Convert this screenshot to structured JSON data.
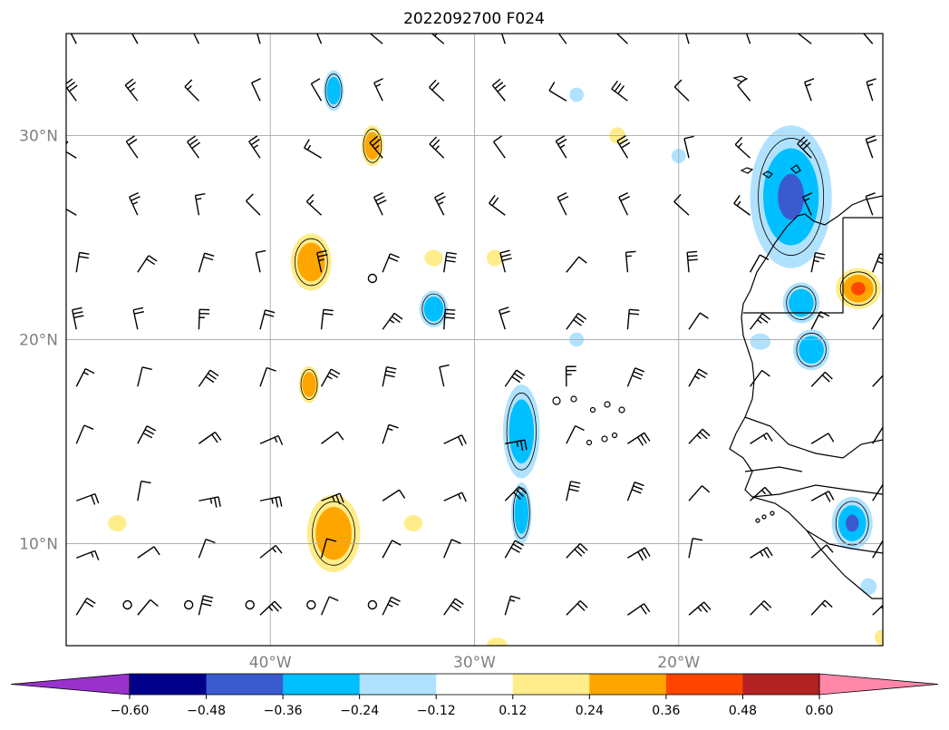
{
  "title": "2022092700 F024",
  "map": {
    "lon_range": [
      -50,
      -10
    ],
    "lat_range": [
      5,
      35
    ],
    "gridlines": true,
    "lon_ticks": [
      {
        "value": -40,
        "label": "40°W"
      },
      {
        "value": -30,
        "label": "30°W"
      },
      {
        "value": -20,
        "label": "20°W"
      }
    ],
    "lat_ticks": [
      {
        "value": 30,
        "label": "30°N"
      },
      {
        "value": 20,
        "label": "20°N"
      },
      {
        "value": 10,
        "label": "10°N"
      }
    ]
  },
  "colorbar": {
    "extend": "both",
    "under_color": "#9932cc",
    "over_color": "#ff88aa",
    "bins": [
      {
        "color": "#00008b"
      },
      {
        "color": "#3a5bd0"
      },
      {
        "color": "#00bfff"
      },
      {
        "color": "#b0e2ff"
      },
      {
        "color": "#ffffff"
      },
      {
        "color": "#ffec8b"
      },
      {
        "color": "#ffa500"
      },
      {
        "color": "#ff4500"
      },
      {
        "color": "#b22222"
      }
    ],
    "tick_labels": [
      "−0.60",
      "−0.48",
      "−0.36",
      "−0.24",
      "−0.12",
      "0.12",
      "0.24",
      "0.36",
      "0.48",
      "0.60"
    ]
  },
  "colors": {
    "neg_light": "#b0e2ff",
    "neg_mid": "#00bfff",
    "neg_strong": "#3a5bd0",
    "pos_light": "#ffec8b",
    "pos_mid": "#ffa500",
    "pos_strong": "#ff4500"
  },
  "anomalies": [
    {
      "lon": -36.9,
      "lat": 32.2,
      "rx": 0.5,
      "ry": 1.0,
      "level": 2
    },
    {
      "lon": -35.0,
      "lat": 29.5,
      "rx": 0.55,
      "ry": 1.0,
      "level": -2
    },
    {
      "lon": -23.0,
      "lat": 30.0,
      "rx": 0.4,
      "ry": 0.4,
      "level": -1
    },
    {
      "lon": -25.0,
      "lat": 32.0,
      "rx": 0.35,
      "ry": 0.35,
      "level": 1
    },
    {
      "lon": -20.0,
      "lat": 29.0,
      "rx": 0.35,
      "ry": 0.35,
      "level": 1
    },
    {
      "lon": -38.0,
      "lat": 23.8,
      "rx": 1.0,
      "ry": 1.4,
      "level": -2
    },
    {
      "lon": -32.0,
      "lat": 24.0,
      "rx": 0.45,
      "ry": 0.4,
      "level": -1
    },
    {
      "lon": -29.0,
      "lat": 24.0,
      "rx": 0.4,
      "ry": 0.4,
      "level": -1
    },
    {
      "lon": -32.0,
      "lat": 21.5,
      "rx": 0.7,
      "ry": 0.9,
      "level": 2
    },
    {
      "lon": -25.0,
      "lat": 20.0,
      "rx": 0.35,
      "ry": 0.35,
      "level": 1
    },
    {
      "lon": -38.1,
      "lat": 17.8,
      "rx": 0.5,
      "ry": 0.9,
      "level": -2
    },
    {
      "lon": -47.5,
      "lat": 11.0,
      "rx": 0.45,
      "ry": 0.4,
      "level": -1
    },
    {
      "lon": -33.0,
      "lat": 11.0,
      "rx": 0.45,
      "ry": 0.4,
      "level": -1
    },
    {
      "lon": -36.9,
      "lat": 10.5,
      "rx": 1.3,
      "ry": 1.9,
      "level": -2
    },
    {
      "lon": -27.7,
      "lat": 15.5,
      "rx": 0.9,
      "ry": 2.3,
      "level": 2
    },
    {
      "lon": -27.7,
      "lat": 11.5,
      "rx": 0.5,
      "ry": 1.5,
      "level": 2
    },
    {
      "lon": -14.5,
      "lat": 27.0,
      "rx": 2.0,
      "ry": 3.5,
      "level": 3
    },
    {
      "lon": -14.0,
      "lat": 21.8,
      "rx": 0.9,
      "ry": 1.0,
      "level": 2
    },
    {
      "lon": -13.5,
      "lat": 19.5,
      "rx": 0.9,
      "ry": 1.0,
      "level": 2
    },
    {
      "lon": -16.0,
      "lat": 19.9,
      "rx": 0.5,
      "ry": 0.4,
      "level": 1
    },
    {
      "lon": -11.2,
      "lat": 22.5,
      "rx": 1.1,
      "ry": 1.0,
      "level": -3
    },
    {
      "lon": -11.5,
      "lat": 11.0,
      "rx": 1.0,
      "ry": 1.3,
      "level": 3
    },
    {
      "lon": -10.7,
      "lat": 7.9,
      "rx": 0.4,
      "ry": 0.4,
      "level": 1
    },
    {
      "lon": -28.9,
      "lat": 5.0,
      "rx": 0.5,
      "ry": 0.4,
      "level": -1
    },
    {
      "lon": -10.0,
      "lat": 5.4,
      "rx": 0.4,
      "ry": 0.4,
      "level": -1
    }
  ],
  "wind_barbs": {
    "lons": [
      -49.5,
      -46.5,
      -43.5,
      -40.5,
      -37.5,
      -34.5,
      -31.5,
      -28.5,
      -25.5,
      -22.5,
      -19.5,
      -16.5,
      -13.5,
      -10.5
    ],
    "lats": [
      34.5,
      31.7,
      28.9,
      26.1,
      23.3,
      20.5,
      17.7,
      14.9,
      12.1,
      9.3,
      6.5
    ],
    "calm_points": [
      {
        "lon": -47.0,
        "lat": 7.0
      },
      {
        "lon": -44.0,
        "lat": 7.0
      },
      {
        "lon": -41.0,
        "lat": 7.0
      },
      {
        "lon": -38.0,
        "lat": 7.0
      },
      {
        "lon": -35.0,
        "lat": 7.0
      },
      {
        "lon": -35.0,
        "lat": 23.0
      }
    ]
  }
}
